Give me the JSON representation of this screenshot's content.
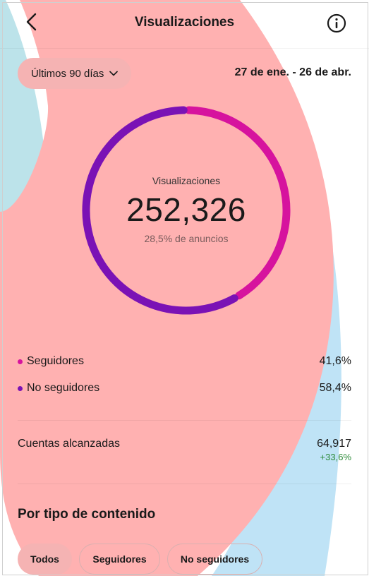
{
  "header": {
    "title": "Visualizaciones",
    "back_icon": "chevron-left-icon",
    "info_icon": "info-icon"
  },
  "filter": {
    "range_label": "Últimos 90 días",
    "range_icon": "chevron-down-icon",
    "date_range": "27 de ene. - 26 de abr."
  },
  "summary": {
    "label": "Visualizaciones",
    "value": "252,326",
    "sub": "28,5% de anuncios"
  },
  "breakdown": [
    {
      "label": "Seguidores",
      "percent": "41,6%",
      "fraction": 0.416,
      "color": "#d6139e"
    },
    {
      "label": "No seguidores",
      "percent": "58,4%",
      "fraction": 0.584,
      "color": "#7a12b5"
    }
  ],
  "reach": {
    "label": "Cuentas alcanzadas",
    "value": "64,917",
    "change": "+33,6%",
    "change_color": "#2e8b3a"
  },
  "content_section": {
    "title": "Por tipo de contenido",
    "chips": [
      {
        "label": "Todos",
        "active": true
      },
      {
        "label": "Seguidores",
        "active": false
      },
      {
        "label": "No seguidores",
        "active": false
      }
    ]
  },
  "colors": {
    "salmon_overlay": "#ffb1b1",
    "teal_overlay": "#bce3ea",
    "sky_overlay": "#bfe3f6"
  }
}
